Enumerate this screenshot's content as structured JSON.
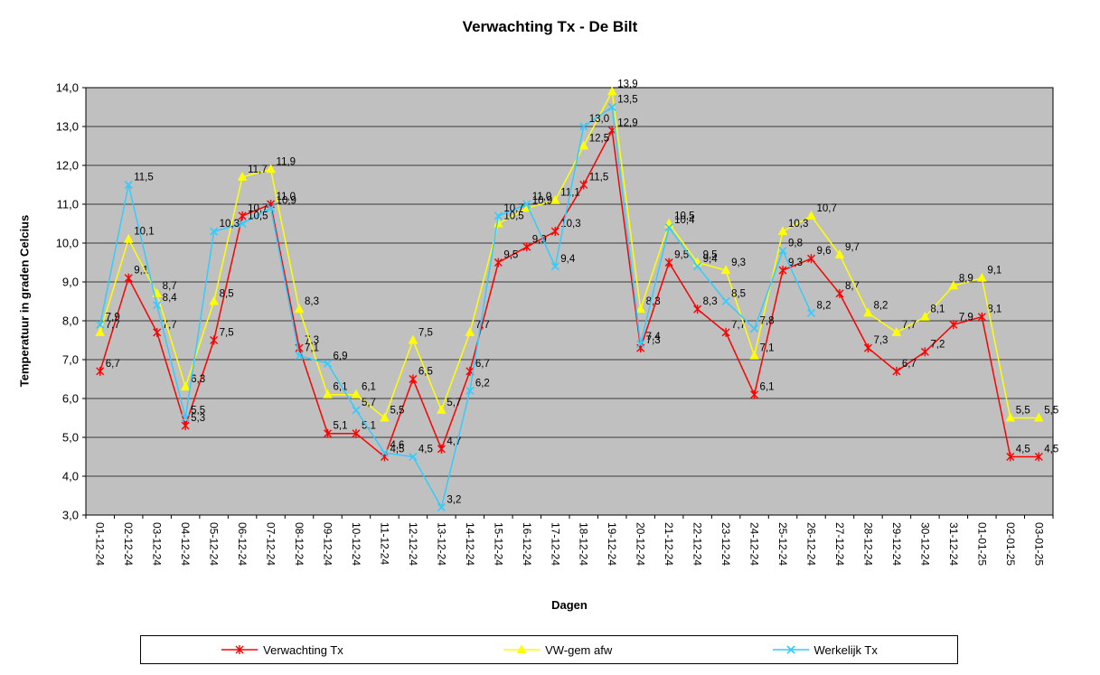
{
  "title": "Verwachting Tx - De Bilt",
  "chart_data": {
    "type": "line",
    "title": "Verwachting Tx - De Bilt",
    "xlabel": "Dagen",
    "ylabel": "Temperatuur in graden Celcius",
    "ylim": [
      3.0,
      14.0
    ],
    "ytick_step": 1.0,
    "grid": "horizontal",
    "plot_bg": "#c0c0c0",
    "gridline_color": "#3a3a3a",
    "legend_position": "bottom",
    "decimal_separator": ",",
    "point_labels": true,
    "categories": [
      "01-12-24",
      "02-12-24",
      "03-12-24",
      "04-12-24",
      "05-12-24",
      "06-12-24",
      "07-12-24",
      "08-12-24",
      "09-12-24",
      "10-12-24",
      "11-12-24",
      "12-12-24",
      "13-12-24",
      "14-12-24",
      "15-12-24",
      "16-12-24",
      "17-12-24",
      "18-12-24",
      "19-12-24",
      "20-12-24",
      "21-12-24",
      "22-12-24",
      "23-12-24",
      "24-12-24",
      "25-12-24",
      "26-12-24",
      "27-12-24",
      "28-12-24",
      "29-12-24",
      "30-12-24",
      "31-12-24",
      "01-01-25",
      "02-01-25",
      "03-01-25"
    ],
    "series": [
      {
        "name": "Verwachting Tx",
        "color": "#ff0000",
        "marker": "star",
        "values": [
          6.7,
          9.1,
          7.7,
          5.3,
          7.5,
          10.7,
          11.0,
          7.3,
          5.1,
          5.1,
          4.5,
          6.5,
          4.7,
          6.7,
          9.5,
          9.9,
          10.3,
          11.5,
          12.9,
          7.3,
          9.5,
          8.3,
          7.7,
          6.1,
          9.3,
          9.6,
          8.7,
          7.3,
          6.7,
          7.2,
          7.9,
          8.1,
          4.5,
          4.5
        ]
      },
      {
        "name": "VW-gem afw",
        "color": "#ffff00",
        "marker": "triangle",
        "values": [
          7.7,
          10.1,
          8.7,
          6.3,
          8.5,
          11.7,
          11.9,
          8.3,
          6.1,
          6.1,
          5.5,
          7.5,
          5.7,
          7.7,
          10.5,
          10.9,
          11.1,
          12.5,
          13.9,
          8.3,
          10.5,
          9.5,
          9.3,
          7.1,
          10.3,
          10.7,
          9.7,
          8.2,
          7.7,
          8.1,
          8.9,
          9.1,
          5.5,
          5.5
        ]
      },
      {
        "name": "Werkelijk Tx",
        "color": "#33ccff",
        "marker": "x",
        "values": [
          7.9,
          11.5,
          8.4,
          5.5,
          10.3,
          10.5,
          10.9,
          7.1,
          6.9,
          5.7,
          4.6,
          4.5,
          3.2,
          6.2,
          10.7,
          11.0,
          9.4,
          13.0,
          13.5,
          7.4,
          10.4,
          9.4,
          8.5,
          7.8,
          9.8,
          8.2,
          null,
          null,
          null,
          null,
          null,
          null,
          null,
          null
        ]
      }
    ]
  }
}
